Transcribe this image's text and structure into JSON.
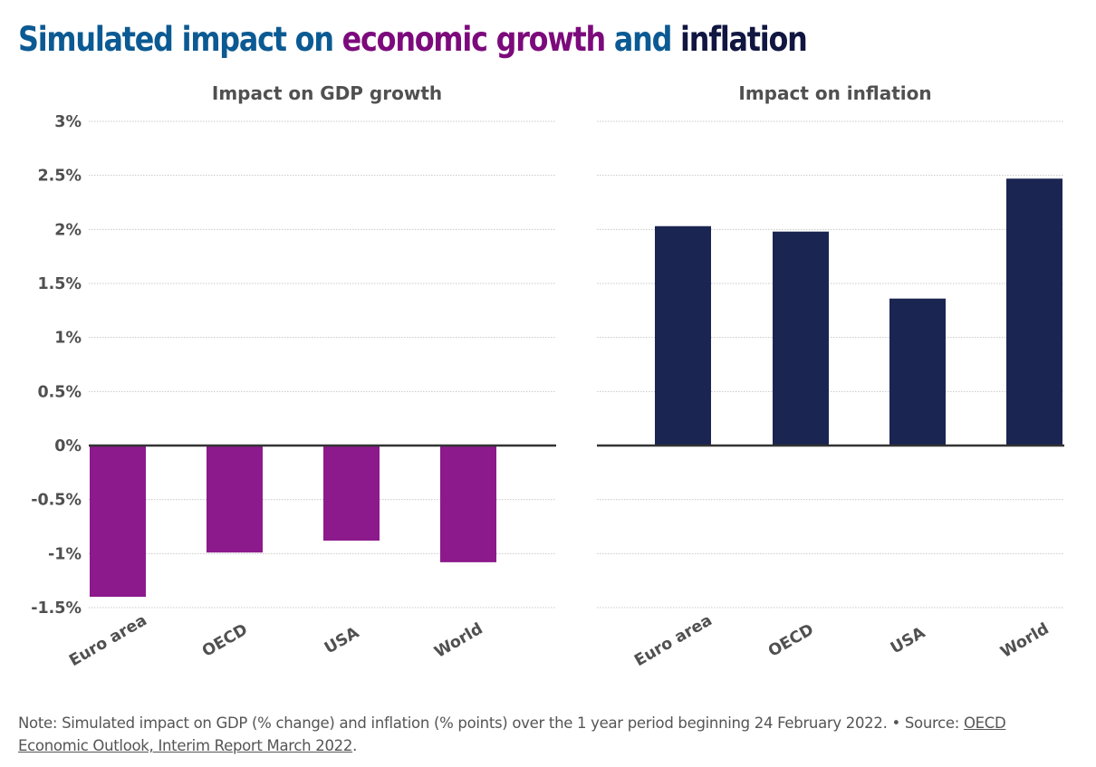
{
  "title": {
    "part1": "Simulated impact on ",
    "part2": "economic growth",
    "part3": " and ",
    "part4": "inflation"
  },
  "colors": {
    "title_blue": "#0b5a93",
    "title_purple": "#7c0a7c",
    "title_navy": "#101640",
    "gdp_bar": "#8c1a8c",
    "inflation_bar": "#1b2552",
    "grid": "#c8c8c8",
    "zero_line": "#333333"
  },
  "chart_data": [
    {
      "type": "bar",
      "title": "Impact on GDP growth",
      "categories": [
        "Euro area",
        "OECD",
        "USA",
        "World"
      ],
      "values": [
        -1.4,
        -0.99,
        -0.88,
        -1.08
      ],
      "ylim": [
        -1.5,
        3
      ],
      "yticks": [
        "3%",
        "2.5%",
        "2%",
        "1.5%",
        "1%",
        "0.5%",
        "0%",
        "-0.5%",
        "-1%",
        "-1.5%"
      ],
      "ytick_values": [
        3,
        2.5,
        2,
        1.5,
        1,
        0.5,
        0,
        -0.5,
        -1,
        -1.5
      ],
      "grid": true,
      "color": "#8c1a8c"
    },
    {
      "type": "bar",
      "title": "Impact on inflation",
      "categories": [
        "Euro area",
        "OECD",
        "USA",
        "World"
      ],
      "values": [
        2.03,
        1.98,
        1.36,
        2.47
      ],
      "ylim": [
        -1.5,
        3
      ],
      "grid": true,
      "color": "#1b2552"
    }
  ],
  "note": {
    "text": "Note: Simulated impact on GDP (% change) and inflation (% points) over the 1 year period beginning 24 February 2022. • Source: ",
    "link": "OECD Economic Outlook, Interim Report March 2022",
    "end": "."
  }
}
